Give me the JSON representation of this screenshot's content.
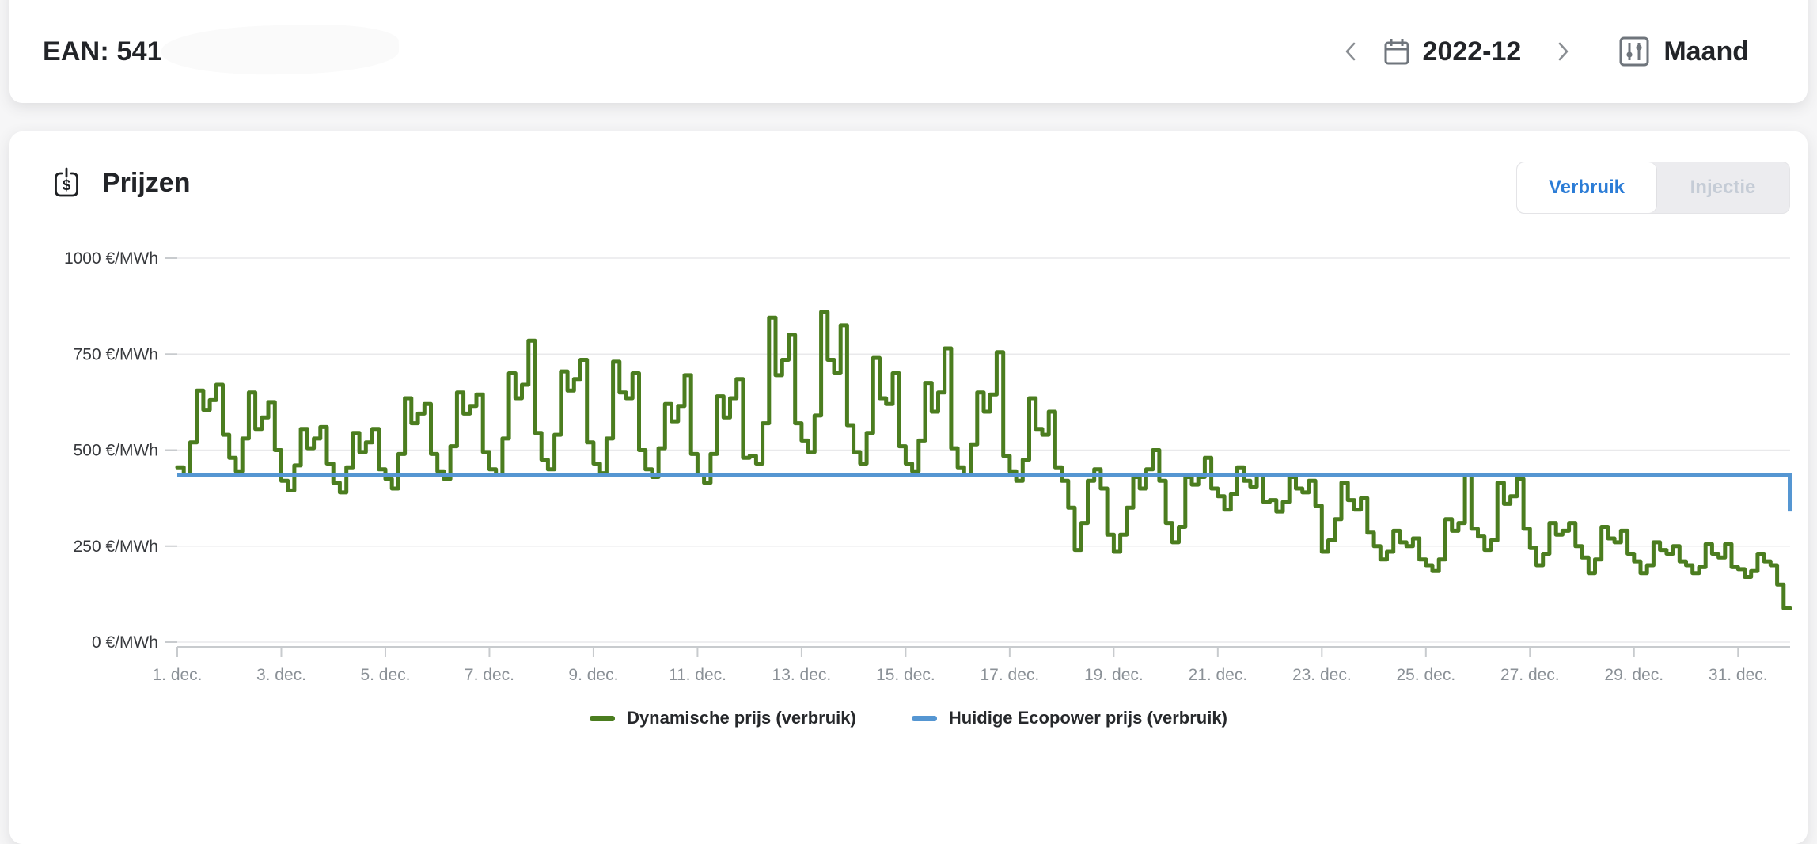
{
  "header": {
    "title": "EAN: 541",
    "period": "2022-12",
    "view_mode": "Maand"
  },
  "prices_card": {
    "title": "Prijzen",
    "tabs": [
      {
        "label": "Verbruik",
        "active": true
      },
      {
        "label": "Injectie",
        "active": false
      }
    ]
  },
  "chart_data": {
    "type": "line",
    "title": "Prijzen",
    "unit": "€/MWh",
    "ylim": [
      0,
      1000
    ],
    "x_range_days": 31,
    "grid": "horizontal",
    "legend_position": "bottom-center",
    "y_ticks": [
      {
        "value": 0,
        "label": "0 €/MWh"
      },
      {
        "value": 250,
        "label": "250 €/MWh"
      },
      {
        "value": 500,
        "label": "500 €/MWh"
      },
      {
        "value": 750,
        "label": "750 €/MWh"
      },
      {
        "value": 1000,
        "label": "1000 €/MWh"
      }
    ],
    "x_ticks": [
      {
        "day": 1,
        "label": "1. dec."
      },
      {
        "day": 3,
        "label": "3. dec."
      },
      {
        "day": 5,
        "label": "5. dec."
      },
      {
        "day": 7,
        "label": "7. dec."
      },
      {
        "day": 9,
        "label": "9. dec."
      },
      {
        "day": 11,
        "label": "11. dec."
      },
      {
        "day": 13,
        "label": "13. dec."
      },
      {
        "day": 15,
        "label": "15. dec."
      },
      {
        "day": 17,
        "label": "17. dec."
      },
      {
        "day": 19,
        "label": "19. dec."
      },
      {
        "day": 21,
        "label": "21. dec."
      },
      {
        "day": 23,
        "label": "23. dec."
      },
      {
        "day": 25,
        "label": "25. dec."
      },
      {
        "day": 27,
        "label": "27. dec."
      },
      {
        "day": 29,
        "label": "29. dec."
      },
      {
        "day": 31,
        "label": "31. dec."
      }
    ],
    "series": [
      {
        "name": "Dynamische prijs (verbruik)",
        "color": "#4b7d1f",
        "style": "step",
        "interval_hours": 3,
        "daily_3h_values": [
          [
            455,
            435,
            520,
            655,
            605,
            630,
            670,
            540
          ],
          [
            480,
            445,
            530,
            650,
            555,
            585,
            625,
            500
          ],
          [
            420,
            395,
            460,
            555,
            505,
            530,
            560,
            465
          ],
          [
            415,
            390,
            455,
            545,
            495,
            520,
            555,
            450
          ],
          [
            425,
            400,
            490,
            635,
            570,
            595,
            620,
            490
          ],
          [
            445,
            425,
            510,
            650,
            595,
            615,
            645,
            495
          ],
          [
            450,
            435,
            530,
            700,
            635,
            670,
            785,
            545
          ],
          [
            475,
            450,
            540,
            705,
            655,
            685,
            735,
            520
          ],
          [
            465,
            440,
            530,
            730,
            650,
            635,
            700,
            500
          ],
          [
            450,
            430,
            505,
            620,
            575,
            615,
            695,
            490
          ],
          [
            435,
            415,
            490,
            640,
            585,
            635,
            685,
            480
          ],
          [
            485,
            465,
            570,
            845,
            695,
            735,
            800,
            570
          ],
          [
            525,
            495,
            590,
            860,
            735,
            700,
            825,
            565
          ],
          [
            495,
            465,
            545,
            740,
            635,
            620,
            700,
            510
          ],
          [
            465,
            445,
            525,
            675,
            600,
            650,
            765,
            505
          ],
          [
            455,
            435,
            515,
            650,
            600,
            645,
            755,
            485
          ],
          [
            445,
            420,
            475,
            635,
            555,
            540,
            600,
            455
          ],
          [
            420,
            350,
            240,
            310,
            420,
            450,
            400,
            280
          ],
          [
            235,
            280,
            350,
            430,
            400,
            450,
            500,
            420
          ],
          [
            310,
            260,
            300,
            430,
            410,
            430,
            480,
            400
          ],
          [
            380,
            345,
            385,
            455,
            420,
            405,
            435,
            365
          ],
          [
            370,
            340,
            365,
            430,
            400,
            390,
            420,
            355
          ],
          [
            235,
            265,
            320,
            415,
            370,
            345,
            375,
            285
          ],
          [
            250,
            215,
            235,
            290,
            260,
            250,
            270,
            215
          ],
          [
            200,
            185,
            215,
            320,
            290,
            310,
            435,
            295
          ],
          [
            275,
            240,
            265,
            415,
            360,
            380,
            425,
            295
          ],
          [
            245,
            200,
            230,
            310,
            280,
            290,
            310,
            250
          ],
          [
            220,
            180,
            215,
            300,
            270,
            260,
            290,
            230
          ],
          [
            210,
            180,
            200,
            260,
            240,
            230,
            250,
            210
          ],
          [
            200,
            180,
            195,
            255,
            230,
            220,
            255,
            195
          ],
          [
            190,
            170,
            185,
            230,
            210,
            200,
            150,
            88
          ]
        ]
      },
      {
        "name": "Huidige Ecopower prijs (verbruik)",
        "color": "#5596d2",
        "style": "flat",
        "value": 435,
        "end_value": 340
      }
    ]
  },
  "colors": {
    "accent_blue": "#2b7cd6",
    "series_green": "#4b7d1f",
    "series_blue": "#5596d2",
    "grid": "#e9e9eb",
    "axis": "#c8cbce"
  }
}
